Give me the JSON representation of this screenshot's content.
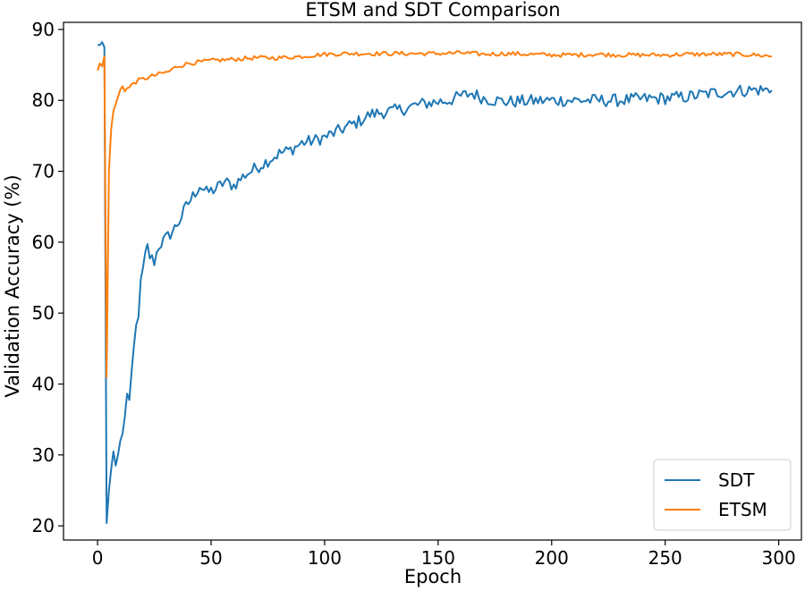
{
  "chart_data": {
    "type": "line",
    "title": "ETSM and SDT Comparison",
    "xlabel": "Epoch",
    "ylabel": "Validation Accuracy (%)",
    "xlim": [
      -15,
      310
    ],
    "ylim": [
      18,
      91
    ],
    "xticks": [
      0,
      50,
      100,
      150,
      200,
      250,
      300
    ],
    "yticks": [
      20,
      30,
      40,
      50,
      60,
      70,
      80,
      90
    ],
    "grid": false,
    "legend_position": "bottom-right",
    "series": [
      {
        "name": "SDT",
        "color": "#1f77b4",
        "anchors": [
          [
            0,
            87.8
          ],
          [
            1,
            87.8
          ],
          [
            2,
            88.2
          ],
          [
            3,
            87.5
          ],
          [
            4,
            20.4
          ],
          [
            5,
            25
          ],
          [
            6,
            28
          ],
          [
            7,
            30.5
          ],
          [
            8,
            28.5
          ],
          [
            9,
            30
          ],
          [
            10,
            32
          ],
          [
            11,
            33
          ],
          [
            12,
            35
          ],
          [
            13,
            39
          ],
          [
            14,
            37.5
          ],
          [
            15,
            41
          ],
          [
            16,
            45
          ],
          [
            17,
            48
          ],
          [
            18,
            50
          ],
          [
            19,
            54
          ],
          [
            20,
            56
          ],
          [
            21,
            58
          ],
          [
            22,
            59.3
          ],
          [
            23,
            58
          ],
          [
            25,
            57.3
          ],
          [
            27,
            59.5
          ],
          [
            30,
            60.5
          ],
          [
            33,
            61.5
          ],
          [
            36,
            63
          ],
          [
            39,
            65
          ],
          [
            42,
            66.5
          ],
          [
            45,
            68
          ],
          [
            48,
            67
          ],
          [
            52,
            67.5
          ],
          [
            56,
            68.5
          ],
          [
            60,
            68
          ],
          [
            65,
            69.5
          ],
          [
            70,
            70.5
          ],
          [
            75,
            71.5
          ],
          [
            80,
            72.5
          ],
          [
            85,
            73
          ],
          [
            90,
            74
          ],
          [
            95,
            74.3
          ],
          [
            100,
            74.8
          ],
          [
            105,
            75.5
          ],
          [
            110,
            76.3
          ],
          [
            115,
            77
          ],
          [
            120,
            78
          ],
          [
            125,
            78.3
          ],
          [
            130,
            78.5
          ],
          [
            135,
            78.8
          ],
          [
            140,
            79.3
          ],
          [
            145,
            79.6
          ],
          [
            150,
            79.8
          ],
          [
            155,
            80
          ],
          [
            160,
            80.6
          ],
          [
            165,
            81
          ],
          [
            170,
            80.3
          ],
          [
            175,
            80
          ],
          [
            180,
            79.8
          ],
          [
            190,
            79.9
          ],
          [
            200,
            80
          ],
          [
            210,
            80
          ],
          [
            220,
            80
          ],
          [
            230,
            80
          ],
          [
            240,
            80.2
          ],
          [
            250,
            80.3
          ],
          [
            260,
            80.5
          ],
          [
            270,
            81
          ],
          [
            280,
            81.3
          ],
          [
            290,
            81.5
          ],
          [
            297,
            81.4
          ]
        ],
        "noise": 0.9
      },
      {
        "name": "ETSM",
        "color": "#ff7f0e",
        "anchors": [
          [
            0,
            84.2
          ],
          [
            1,
            85.2
          ],
          [
            2,
            84.8
          ],
          [
            3,
            86.2
          ],
          [
            4,
            41
          ],
          [
            5,
            70
          ],
          [
            6,
            76
          ],
          [
            7,
            78.5
          ],
          [
            8,
            79.5
          ],
          [
            9,
            80.5
          ],
          [
            10,
            81.5
          ],
          [
            11,
            82
          ],
          [
            12,
            81.5
          ],
          [
            14,
            81.8
          ],
          [
            16,
            82.5
          ],
          [
            18,
            82.8
          ],
          [
            20,
            83
          ],
          [
            22,
            83.2
          ],
          [
            25,
            83.5
          ],
          [
            28,
            83.8
          ],
          [
            31,
            84
          ],
          [
            35,
            84.8
          ],
          [
            40,
            85.2
          ],
          [
            45,
            85.4
          ],
          [
            50,
            85.6
          ],
          [
            60,
            85.8
          ],
          [
            70,
            86
          ],
          [
            80,
            86
          ],
          [
            90,
            86.2
          ],
          [
            100,
            86.5
          ],
          [
            110,
            86.6
          ],
          [
            120,
            86.6
          ],
          [
            130,
            86.6
          ],
          [
            140,
            86.6
          ],
          [
            150,
            86.6
          ],
          [
            160,
            86.7
          ],
          [
            170,
            86.5
          ],
          [
            180,
            86.6
          ],
          [
            190,
            86.5
          ],
          [
            200,
            86.4
          ],
          [
            210,
            86.4
          ],
          [
            220,
            86.5
          ],
          [
            230,
            86.4
          ],
          [
            240,
            86.4
          ],
          [
            250,
            86.4
          ],
          [
            260,
            86.5
          ],
          [
            270,
            86.5
          ],
          [
            280,
            86.5
          ],
          [
            290,
            86.4
          ],
          [
            297,
            86.2
          ]
        ],
        "noise": 0.3
      }
    ]
  }
}
